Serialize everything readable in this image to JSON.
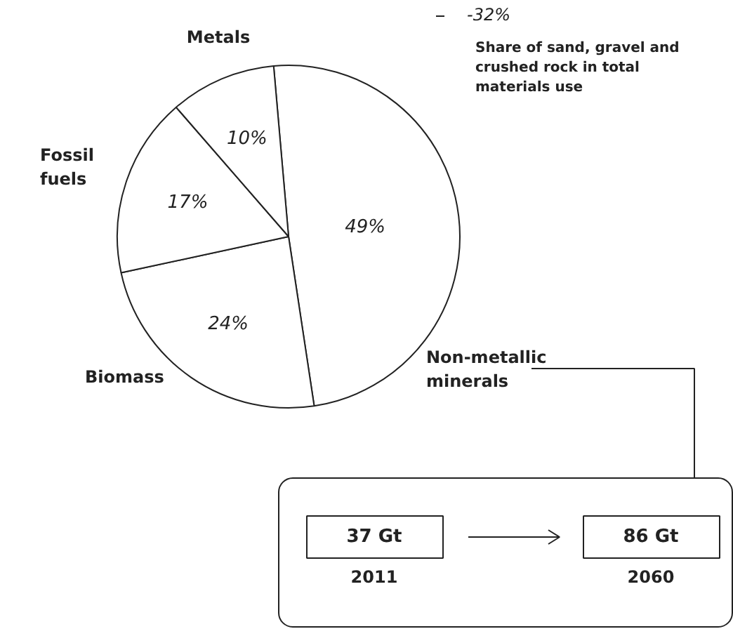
{
  "chart_data": {
    "type": "pie",
    "categories": [
      "Non-metallic minerals",
      "Biomass",
      "Fossil fuels",
      "Metals"
    ],
    "values": [
      49,
      24,
      17,
      10
    ],
    "colors": [
      "#ffffff",
      "#ffffff",
      "#ffffff",
      "#ffffff"
    ],
    "value_labels": [
      "49%",
      "24%",
      "17%",
      "10%"
    ],
    "annotations": [
      "-32%",
      "Share of sand, gravel and crushed rock in total materials use",
      "37 Gt",
      "2011",
      "86 Gt",
      "2060"
    ]
  }
}
